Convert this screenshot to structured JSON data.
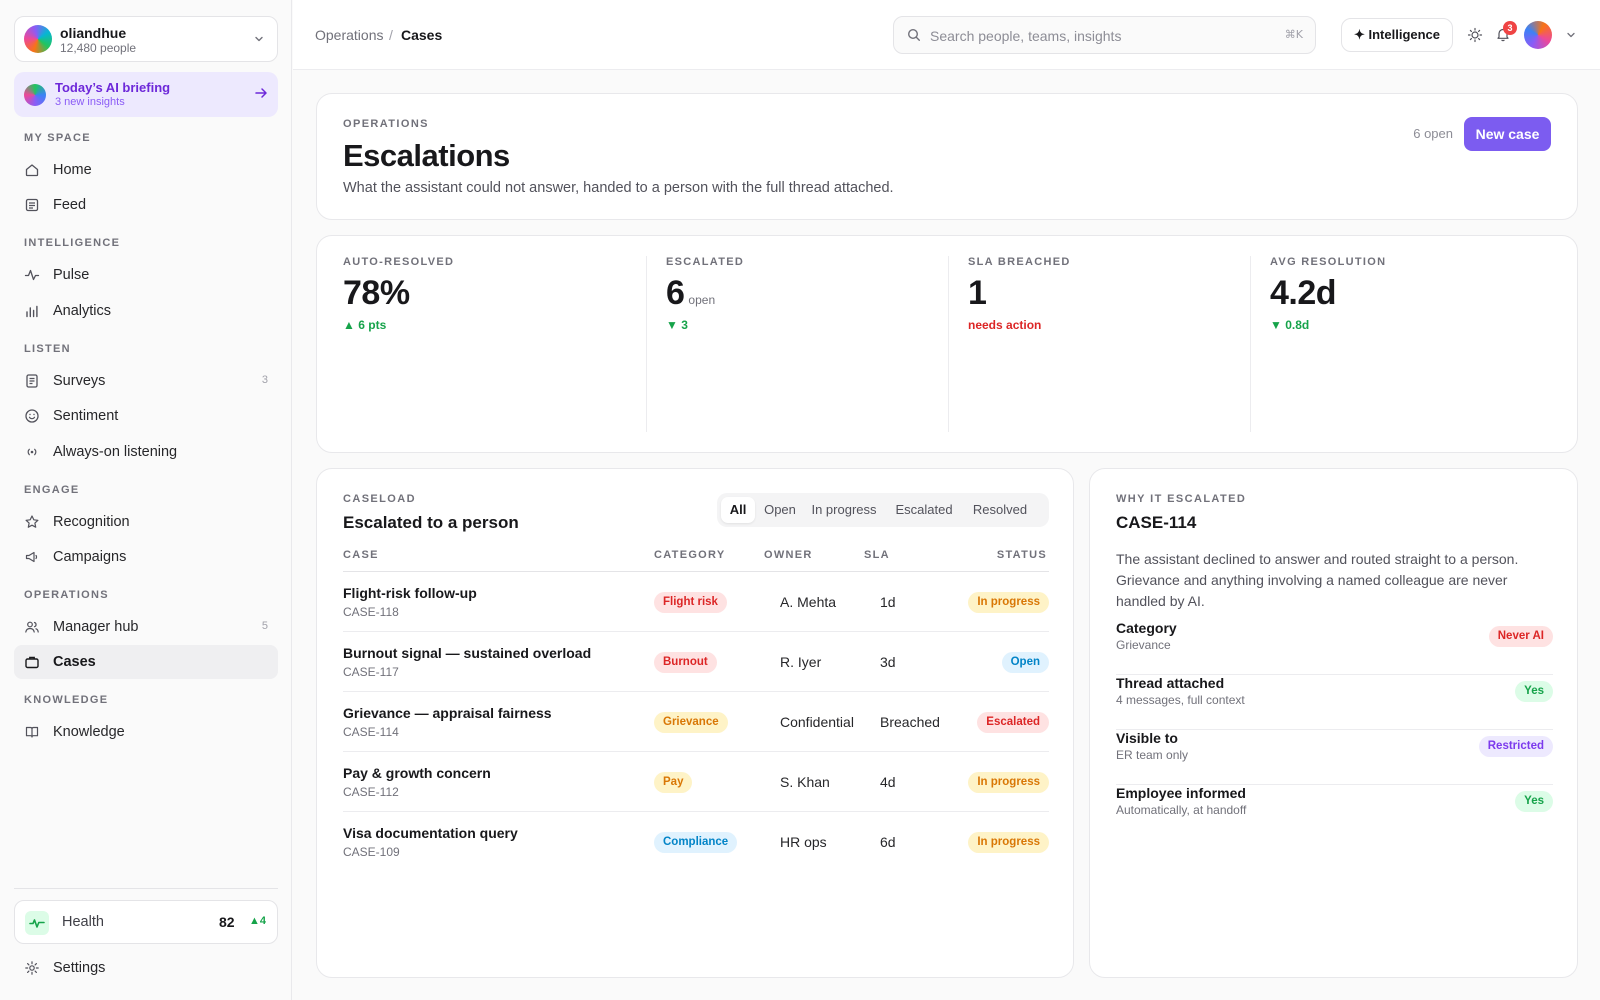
{
  "workspace": {
    "name": "oliandhue",
    "people": "12,480 people"
  },
  "briefing": {
    "title": "Today’s AI briefing",
    "subtitle": "3 new insights"
  },
  "sidebar": {
    "sections": [
      {
        "label": "MY SPACE",
        "items": [
          {
            "label": "Home",
            "icon": "home-icon"
          },
          {
            "label": "Feed",
            "icon": "feed-icon"
          }
        ]
      },
      {
        "label": "INTELLIGENCE",
        "items": [
          {
            "label": "Pulse",
            "icon": "pulse-icon"
          },
          {
            "label": "Analytics",
            "icon": "analytics-icon"
          }
        ]
      },
      {
        "label": "LISTEN",
        "items": [
          {
            "label": "Surveys",
            "icon": "survey-icon",
            "count": "3"
          },
          {
            "label": "Sentiment",
            "icon": "smile-icon"
          },
          {
            "label": "Always-on listening",
            "icon": "broadcast-icon"
          }
        ]
      },
      {
        "label": "ENGAGE",
        "items": [
          {
            "label": "Recognition",
            "icon": "star-icon"
          },
          {
            "label": "Campaigns",
            "icon": "megaphone-icon"
          }
        ]
      },
      {
        "label": "OPERATIONS",
        "items": [
          {
            "label": "Manager hub",
            "icon": "users-icon",
            "count": "5"
          },
          {
            "label": "Cases",
            "icon": "briefcase-icon",
            "active": true
          }
        ]
      },
      {
        "label": "KNOWLEDGE",
        "items": [
          {
            "label": "Knowledge",
            "icon": "book-icon"
          }
        ]
      }
    ],
    "health": {
      "label": "Health",
      "value": "82",
      "delta": "4"
    },
    "settings": "Settings"
  },
  "topbar": {
    "breadcrumb": [
      "Operations",
      "Cases"
    ],
    "search_placeholder": "Search people, teams, insights",
    "shortcut": "⌘K",
    "intelligence": "Intelligence",
    "notifications": "3"
  },
  "header": {
    "eyebrow": "OPERATIONS",
    "title": "Escalations",
    "description": "What the assistant could not answer, handed to a person with the full thread attached.",
    "open_count": "6 open",
    "new_case": "New case"
  },
  "stats": [
    {
      "label": "AUTO-RESOLVED",
      "value": "78%",
      "unit": "",
      "delta": "6 pts",
      "direction": "up",
      "color": "#16a34a"
    },
    {
      "label": "ESCALATED",
      "value": "6",
      "unit": "open",
      "delta": "3",
      "direction": "down",
      "color": "#16a34a"
    },
    {
      "label": "SLA BREACHED",
      "value": "1",
      "unit": "",
      "delta": "needs action",
      "direction": "none",
      "color": "#dc2626"
    },
    {
      "label": "AVG RESOLUTION",
      "value": "4.2d",
      "unit": "",
      "delta": "0.8d",
      "direction": "down",
      "color": "#16a34a"
    }
  ],
  "caseload": {
    "eyebrow": "CASELOAD",
    "title": "Escalated to a person",
    "filters": [
      "All",
      "Open",
      "In progress",
      "Escalated",
      "Resolved"
    ],
    "active_filter": "All",
    "columns": [
      "CASE",
      "CATEGORY",
      "OWNER",
      "SLA",
      "STATUS"
    ],
    "rows": [
      {
        "title": "Flight-risk follow-up",
        "id": "CASE-118",
        "category": "Flight risk",
        "cat_style": "red",
        "owner": "A. Mehta",
        "sla": "1d",
        "status": "In progress",
        "status_style": "amber"
      },
      {
        "title": "Burnout signal — sustained overload",
        "id": "CASE-117",
        "category": "Burnout",
        "cat_style": "red",
        "owner": "R. Iyer",
        "sla": "3d",
        "status": "Open",
        "status_style": "blue"
      },
      {
        "title": "Grievance — appraisal fairness",
        "id": "CASE-114",
        "category": "Grievance",
        "cat_style": "amber",
        "owner": "Confidential",
        "sla": "Breached",
        "status": "Escalated",
        "status_style": "red"
      },
      {
        "title": "Pay & growth concern",
        "id": "CASE-112",
        "category": "Pay",
        "cat_style": "amber",
        "owner": "S. Khan",
        "sla": "4d",
        "status": "In progress",
        "status_style": "amber"
      },
      {
        "title": "Visa documentation query",
        "id": "CASE-109",
        "category": "Compliance",
        "cat_style": "blue",
        "owner": "HR ops",
        "sla": "6d",
        "status": "In progress",
        "status_style": "amber"
      }
    ]
  },
  "why": {
    "eyebrow": "WHY IT ESCALATED",
    "title": "CASE-114",
    "description": "The assistant declined to answer and routed straight to a person. Grievance and anything involving a named colleague are never handled by AI.",
    "items": [
      {
        "label": "Category",
        "detail": "Grievance",
        "badge": "Never AI",
        "style": "red"
      },
      {
        "label": "Thread attached",
        "detail": "4 messages, full context",
        "badge": "Yes",
        "style": "green"
      },
      {
        "label": "Visible to",
        "detail": "ER team only",
        "badge": "Restricted",
        "style": "violet"
      },
      {
        "label": "Employee informed",
        "detail": "Automatically, at handoff",
        "badge": "Yes",
        "style": "green"
      }
    ]
  },
  "colors": {
    "accent": "#7c5cf0",
    "red_bg": "#fee2e2",
    "red_fg": "#dc2626",
    "amber_bg": "#fef3c7",
    "amber_fg": "#d97706",
    "blue_bg": "#e0f2fe",
    "blue_fg": "#0284c7",
    "green_bg": "#dcfce7",
    "green_fg": "#16a34a",
    "violet_bg": "#ede9fe",
    "violet_fg": "#7c3aed"
  }
}
